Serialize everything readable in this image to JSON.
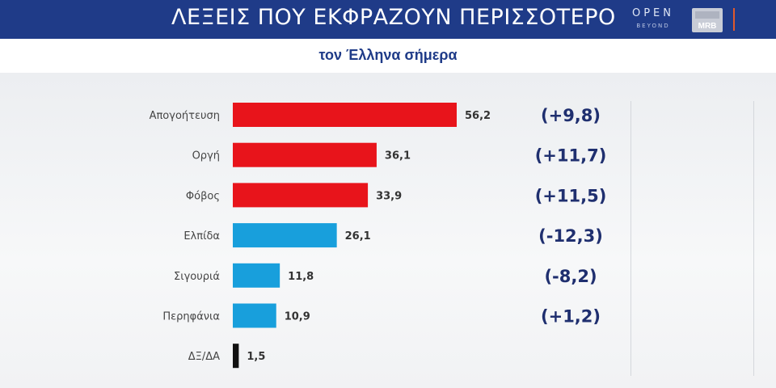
{
  "header": {
    "title": "ΛΕΞΕΙΣ ΠΟΥ ΕΚΦΡΑΖΟΥΝ ΠΕΡΙΣΣΟΤΕΡΟ",
    "subtitle": "τον Έλληνα σήμερα",
    "logo_open": "OPEN",
    "logo_beyond": "BEYOND",
    "logo_mrb": "MRB"
  },
  "colors": {
    "header_bg": "#1f3b88",
    "negative_emotion": "#e8141b",
    "positive_emotion": "#189fdc",
    "no_answer": "#111111",
    "change_text": "#1f2f6f"
  },
  "chart_data": {
    "type": "bar",
    "orientation": "horizontal",
    "title": "ΛΕΞΕΙΣ ΠΟΥ ΕΚΦΡΑΖΟΥΝ ΠΕΡΙΣΣΟΤΕΡΟ τον Έλληνα σήμερα",
    "categories": [
      "Απογοήτευση",
      "Οργή",
      "Φόβος",
      "Ελπίδα",
      "Σιγουριά",
      "Περηφάνια",
      "ΔΞ/ΔΑ"
    ],
    "values": [
      56.2,
      36.1,
      33.9,
      26.1,
      11.8,
      10.9,
      1.5
    ],
    "value_labels": [
      "56,2",
      "36,1",
      "33,9",
      "26,1",
      "11,8",
      "10,9",
      "1,5"
    ],
    "changes": [
      "(+9,8)",
      "(+11,7)",
      "(+11,5)",
      "(-12,3)",
      "(-8,2)",
      "(+1,2)",
      ""
    ],
    "bar_colors": [
      "#e8141b",
      "#e8141b",
      "#e8141b",
      "#189fdc",
      "#189fdc",
      "#189fdc",
      "#111111"
    ],
    "xlim": [
      0,
      60
    ],
    "grid": false,
    "legend": "none"
  }
}
